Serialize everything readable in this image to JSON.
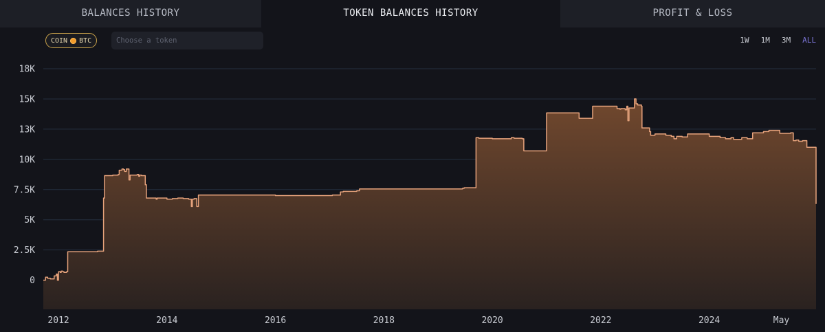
{
  "tabs": [
    {
      "label": "BALANCES HISTORY",
      "active": false
    },
    {
      "label": "TOKEN BALANCES HISTORY",
      "active": true
    },
    {
      "label": "PROFIT & LOSS",
      "active": false
    }
  ],
  "controls": {
    "coin_label": "COIN",
    "coin_value": "BTC",
    "coin_icon": "bitcoin-icon",
    "search_placeholder": "Choose a token",
    "search_value": "",
    "ranges": [
      "1W",
      "1M",
      "3M",
      "ALL"
    ],
    "active_range": "ALL"
  },
  "colors": {
    "background": "#13141a",
    "line": "#e7a37c",
    "fill_top": "#71482e",
    "fill_bottom": "#2a2220",
    "grid": "#253040",
    "active_range": "#7b74d6",
    "coin_border": "#c9a24a"
  },
  "chart_data": {
    "type": "area",
    "title": "",
    "xlabel": "",
    "ylabel": "",
    "x_ticks": [
      "2012",
      "2014",
      "2016",
      "2018",
      "2020",
      "2022",
      "2024",
      "May"
    ],
    "x_tick_values": [
      2012.0,
      2014.0,
      2016.0,
      2018.0,
      2020.0,
      2022.0,
      2024.0,
      2025.33
    ],
    "xlim": [
      2011.72,
      2025.97
    ],
    "y_ticks": [
      "0",
      "2.5K",
      "5K",
      "7.5K",
      "10K",
      "13K",
      "15K",
      "18K"
    ],
    "y_tick_values": [
      0,
      2500,
      5000,
      7500,
      10000,
      12500,
      15000,
      17500
    ],
    "ylim": [
      -2300,
      17500
    ],
    "grid": true,
    "legend": "none",
    "series": [
      {
        "x": [
          2011.72,
          2011.76,
          2011.8,
          2011.85,
          2011.9,
          2011.92,
          2011.96,
          2011.98,
          2012.0,
          2012.03,
          2012.05,
          2012.08,
          2012.1,
          2012.15,
          2012.17,
          2012.3,
          2012.5,
          2012.7,
          2012.72,
          2012.83,
          2012.85,
          2013.0,
          2013.1,
          2013.12,
          2013.17,
          2013.2,
          2013.22,
          2013.25,
          2013.3,
          2013.32,
          2013.45,
          2013.48,
          2013.5,
          2013.53,
          2013.6,
          2013.62,
          2013.8,
          2013.82,
          2014.0,
          2014.1,
          2014.2,
          2014.3,
          2014.4,
          2014.45,
          2014.47,
          2014.5,
          2014.55,
          2014.58,
          2015.0,
          2015.5,
          2016.0,
          2016.5,
          2017.0,
          2017.05,
          2017.2,
          2017.25,
          2017.5,
          2017.55,
          2018.0,
          2018.5,
          2019.0,
          2019.45,
          2019.48,
          2019.7,
          2019.75,
          2020.0,
          2020.35,
          2020.4,
          2020.55,
          2020.58,
          2021.0,
          2021.1,
          2021.15,
          2021.6,
          2021.62,
          2021.8,
          2021.85,
          2022.0,
          2022.3,
          2022.35,
          2022.37,
          2022.45,
          2022.48,
          2022.5,
          2022.52,
          2022.62,
          2022.65,
          2022.68,
          2022.75,
          2022.76,
          2022.9,
          2022.92,
          2023.0,
          2023.2,
          2023.3,
          2023.35,
          2023.4,
          2023.5,
          2023.6,
          2023.8,
          2024.0,
          2024.2,
          2024.3,
          2024.4,
          2024.45,
          2024.6,
          2024.7,
          2024.8,
          2025.0,
          2025.1,
          2025.3,
          2025.5,
          2025.55,
          2025.6,
          2025.65,
          2025.72,
          2025.8,
          2025.97
        ],
        "values": [
          0,
          250,
          150,
          100,
          100,
          350,
          500,
          0,
          700,
          650,
          750,
          700,
          650,
          700,
          2350,
          2350,
          2350,
          2350,
          2400,
          6800,
          8650,
          8700,
          8750,
          9100,
          9200,
          9150,
          9000,
          9200,
          8300,
          8700,
          8750,
          8600,
          8700,
          8650,
          7900,
          6800,
          6700,
          6800,
          6700,
          6750,
          6800,
          6750,
          6700,
          6100,
          6700,
          6750,
          6100,
          7050,
          7050,
          7050,
          7000,
          7000,
          7000,
          7050,
          7300,
          7350,
          7400,
          7550,
          7550,
          7550,
          7550,
          7600,
          7650,
          11800,
          11750,
          11700,
          11800,
          11750,
          11700,
          10700,
          13850,
          13850,
          13850,
          13400,
          13400,
          13400,
          14400,
          14400,
          14200,
          14150,
          14200,
          14100,
          14400,
          13200,
          14250,
          15000,
          14600,
          14500,
          14400,
          12600,
          12300,
          12000,
          12100,
          12000,
          11900,
          11700,
          11900,
          11850,
          12100,
          12100,
          11900,
          11800,
          11700,
          11800,
          11650,
          11800,
          11700,
          12200,
          12300,
          12400,
          12150,
          12200,
          11550,
          11600,
          11500,
          11550,
          11000,
          6300
        ]
      }
    ]
  }
}
